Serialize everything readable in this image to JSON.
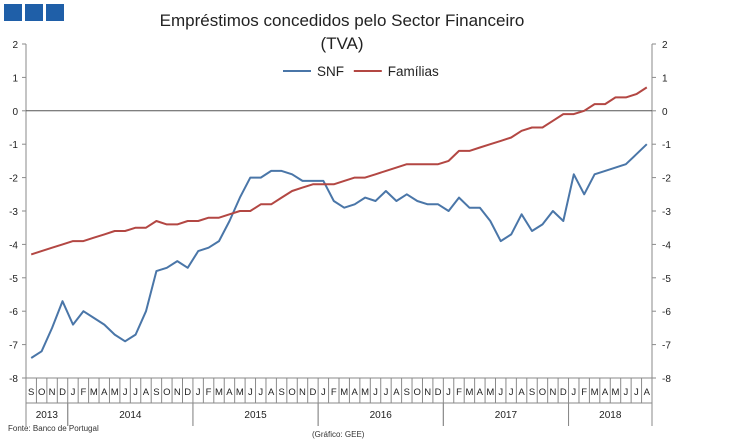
{
  "header": {
    "logo_name": "banco-de-portugal-blue-squares"
  },
  "chart_data": {
    "type": "line",
    "title": "Empréstimos concedidos pelo Sector Financeiro",
    "subtitle": "(TVA)",
    "ylim": [
      -8,
      2
    ],
    "yticks": [
      "2",
      "1",
      "0",
      "-1",
      "-2",
      "-3",
      "-4",
      "-5",
      "-6",
      "-7",
      "-8"
    ],
    "yticks_values": [
      2,
      1,
      0,
      -1,
      -2,
      -3,
      -4,
      -5,
      -6,
      -7,
      -8
    ],
    "month_labels": [
      "S",
      "O",
      "N",
      "D",
      "J",
      "F",
      "M",
      "A",
      "M",
      "J",
      "J",
      "A",
      "S",
      "O",
      "N",
      "D",
      "J",
      "F",
      "M",
      "A",
      "M",
      "J",
      "J",
      "A",
      "S",
      "O",
      "N",
      "D",
      "J",
      "F",
      "M",
      "A",
      "M",
      "J",
      "J",
      "A",
      "S",
      "O",
      "N",
      "D",
      "J",
      "F",
      "M",
      "A",
      "M",
      "J",
      "J",
      "A",
      "S",
      "O",
      "N",
      "D",
      "J",
      "F",
      "M",
      "A",
      "M",
      "J",
      "J",
      "A"
    ],
    "years": [
      {
        "label": "2013",
        "start": 0,
        "count": 4
      },
      {
        "label": "2014",
        "start": 4,
        "count": 12
      },
      {
        "label": "2015",
        "start": 16,
        "count": 12
      },
      {
        "label": "2016",
        "start": 28,
        "count": 12
      },
      {
        "label": "2017",
        "start": 40,
        "count": 12
      },
      {
        "label": "2018",
        "start": 52,
        "count": 8
      }
    ],
    "series": [
      {
        "name": "SNF",
        "color": "#4a76a8",
        "values": [
          -7.4,
          -7.2,
          -6.5,
          -5.7,
          -6.4,
          -6.0,
          -6.2,
          -6.4,
          -6.7,
          -6.9,
          -6.7,
          -6.0,
          -4.8,
          -4.7,
          -4.5,
          -4.7,
          -4.2,
          -4.1,
          -3.9,
          -3.3,
          -2.6,
          -2.0,
          -2.0,
          -1.8,
          -1.8,
          -1.9,
          -2.1,
          -2.1,
          -2.1,
          -2.7,
          -2.9,
          -2.8,
          -2.6,
          -2.7,
          -2.4,
          -2.7,
          -2.5,
          -2.7,
          -2.8,
          -2.8,
          -3.0,
          -2.6,
          -2.9,
          -2.9,
          -3.3,
          -3.9,
          -3.7,
          -3.1,
          -3.6,
          -3.4,
          -3.0,
          -3.3,
          -1.9,
          -2.5,
          -1.9,
          -1.8,
          -1.7,
          -1.6,
          -1.3,
          -1.0
        ]
      },
      {
        "name": "Famílias",
        "color": "#b34743",
        "values": [
          -4.3,
          -4.2,
          -4.1,
          -4.0,
          -3.9,
          -3.9,
          -3.8,
          -3.7,
          -3.6,
          -3.6,
          -3.5,
          -3.5,
          -3.3,
          -3.4,
          -3.4,
          -3.3,
          -3.3,
          -3.2,
          -3.2,
          -3.1,
          -3.0,
          -3.0,
          -2.8,
          -2.8,
          -2.6,
          -2.4,
          -2.3,
          -2.2,
          -2.2,
          -2.2,
          -2.1,
          -2.0,
          -2.0,
          -1.9,
          -1.8,
          -1.7,
          -1.6,
          -1.6,
          -1.6,
          -1.6,
          -1.5,
          -1.2,
          -1.2,
          -1.1,
          -1.0,
          -0.9,
          -0.8,
          -0.6,
          -0.5,
          -0.5,
          -0.3,
          -0.1,
          -0.1,
          0.0,
          0.2,
          0.2,
          0.4,
          0.4,
          0.5,
          0.7
        ]
      }
    ]
  },
  "footer": {
    "source": "Fonte: Banco de Portugal",
    "credit": "(Gráfico: GEE)"
  }
}
